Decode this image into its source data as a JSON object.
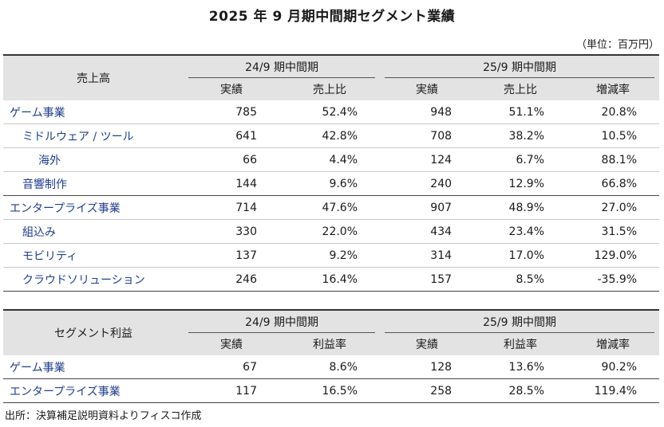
{
  "title": "2025 年 9 月期中間期セグメント業績",
  "unit": "（単位：百万円）",
  "sales": {
    "row_header": "売上高",
    "period_prev": "24/9 期中間期",
    "period_curr": "25/9 期中間期",
    "cols": [
      "実績",
      "売上比",
      "実績",
      "売上比",
      "増減率"
    ],
    "rows": [
      {
        "name": "ゲーム事業",
        "v": [
          "785",
          "52.4%",
          "948",
          "51.1%",
          "20.8%"
        ]
      },
      {
        "name": "ミドルウェア / ツール",
        "v": [
          "641",
          "42.8%",
          "708",
          "38.2%",
          "10.5%"
        ]
      },
      {
        "name": "海外",
        "v": [
          "66",
          "4.4%",
          "124",
          "6.7%",
          "88.1%"
        ]
      },
      {
        "name": "音響制作",
        "v": [
          "144",
          "9.6%",
          "240",
          "12.9%",
          "66.8%"
        ]
      },
      {
        "name": "エンタープライズ事業",
        "v": [
          "714",
          "47.6%",
          "907",
          "48.9%",
          "27.0%"
        ]
      },
      {
        "name": "組込み",
        "v": [
          "330",
          "22.0%",
          "434",
          "23.4%",
          "31.5%"
        ]
      },
      {
        "name": "モビリティ",
        "v": [
          "137",
          "9.2%",
          "314",
          "17.0%",
          "129.0%"
        ]
      },
      {
        "name": "クラウドソリューション",
        "v": [
          "246",
          "16.4%",
          "157",
          "8.5%",
          "-35.9%"
        ]
      }
    ]
  },
  "profit": {
    "row_header": "セグメント利益",
    "period_prev": "24/9 期中間期",
    "period_curr": "25/9 期中間期",
    "cols": [
      "実績",
      "利益率",
      "実績",
      "利益率",
      "増減率"
    ],
    "rows": [
      {
        "name": "ゲーム事業",
        "v": [
          "67",
          "8.6%",
          "128",
          "13.6%",
          "90.2%"
        ]
      },
      {
        "name": "エンタープライズ事業",
        "v": [
          "117",
          "16.5%",
          "258",
          "28.5%",
          "119.4%"
        ]
      }
    ]
  },
  "source": "出所：決算補足説明資料よりフィスコ作成"
}
